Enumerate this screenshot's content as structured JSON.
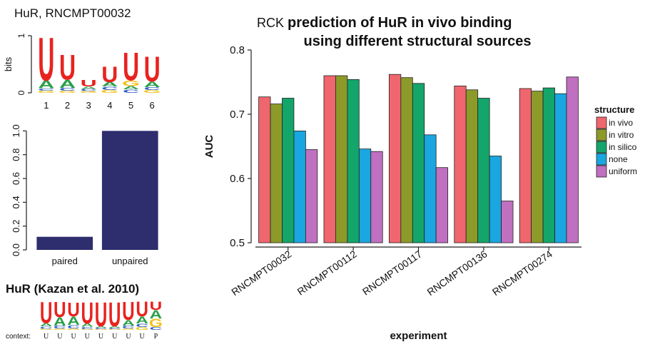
{
  "chart_data": [
    {
      "type": "logo",
      "title": "HuR, RNCMPT00032",
      "y_label": "bits",
      "x": [
        1,
        2,
        3,
        4,
        5,
        6
      ],
      "xlim": [
        0.5,
        6.5
      ],
      "ylim": [
        0,
        1
      ],
      "yticks": [
        0,
        1
      ],
      "series": [
        {
          "name": "G",
          "color": "#f2c21b",
          "values": [
            0.04,
            0.04,
            0.03,
            0.05,
            0.1,
            0.05
          ]
        },
        {
          "name": "C",
          "color": "#2f5fc4",
          "values": [
            0.04,
            0.05,
            0.04,
            0.06,
            0.06,
            0.05
          ]
        },
        {
          "name": "A",
          "color": "#2aa04a",
          "values": [
            0.14,
            0.14,
            0.04,
            0.08,
            0.06,
            0.1
          ]
        },
        {
          "name": "U",
          "color": "#e8231f",
          "values": [
            0.78,
            0.45,
            0.12,
            0.28,
            0.5,
            0.45
          ]
        }
      ]
    },
    {
      "type": "bar",
      "categories": [
        "paired",
        "unpaired"
      ],
      "values": [
        0.11,
        1.0
      ],
      "color": "#2e2d6e",
      "ylim": [
        0,
        1.02
      ],
      "yticks": [
        {
          "value": 0,
          "label": "0.0"
        },
        {
          "value": 0.2,
          "label": "0.2"
        },
        {
          "value": 0.4,
          "label": "0.4"
        },
        {
          "value": 0.6,
          "label": "0.6"
        },
        {
          "value": 0.8,
          "label": "0.8"
        },
        {
          "value": 1,
          "label": "1.0"
        }
      ]
    },
    {
      "type": "logo",
      "title": "HuR  (Kazan et al. 2010)",
      "context_label": "context:",
      "categories": [
        "U",
        "U",
        "U",
        "U",
        "U",
        "U",
        "U",
        "U",
        "P"
      ],
      "ylim": [
        0,
        1
      ],
      "series": [
        {
          "name": "C",
          "color": "#2f5fc4",
          "values": [
            0.08,
            0.1,
            0.12,
            0.08,
            0.05,
            0.05,
            0.1,
            0.12,
            0.1
          ]
        },
        {
          "name": "G",
          "color": "#f2c21b",
          "values": [
            0.04,
            0.05,
            0.05,
            0.03,
            0.03,
            0.03,
            0.05,
            0.1,
            0.3
          ]
        },
        {
          "name": "A",
          "color": "#2aa04a",
          "values": [
            0.12,
            0.3,
            0.3,
            0.12,
            0.05,
            0.05,
            0.2,
            0.25,
            0.3
          ]
        },
        {
          "name": "U",
          "color": "#e8231f",
          "values": [
            0.76,
            0.55,
            0.5,
            0.77,
            0.87,
            0.87,
            0.65,
            0.53,
            0.3
          ]
        }
      ]
    },
    {
      "type": "grouped-bar",
      "title_prefix": "RCK",
      "title": [
        "prediction of HuR in vivo binding",
        "using different structural sources"
      ],
      "x_label": "experiment",
      "y_label": "AUC",
      "legend_title": "structure",
      "categories": [
        "RNCMPT00032",
        "RNCMPT00112",
        "RNCMPT00117",
        "RNCMPT00136",
        "RNCMPT00274"
      ],
      "ylim": [
        0.5,
        0.8
      ],
      "yticks": [
        0.5,
        0.6,
        0.7,
        0.8
      ],
      "series": [
        {
          "name": "in vivo",
          "color": "#f0666e",
          "values": [
            0.727,
            0.76,
            0.762,
            0.744,
            0.74
          ]
        },
        {
          "name": "in vitro",
          "color": "#8c9a2a",
          "values": [
            0.716,
            0.76,
            0.757,
            0.738,
            0.736
          ]
        },
        {
          "name": "in silico",
          "color": "#14a56a",
          "values": [
            0.725,
            0.754,
            0.748,
            0.725,
            0.741
          ]
        },
        {
          "name": "none",
          "color": "#1aa6e0",
          "values": [
            0.674,
            0.646,
            0.668,
            0.635,
            0.732
          ]
        },
        {
          "name": "uniform",
          "color": "#c070c0",
          "values": [
            0.645,
            0.642,
            0.617,
            0.565,
            0.758
          ]
        }
      ]
    }
  ]
}
